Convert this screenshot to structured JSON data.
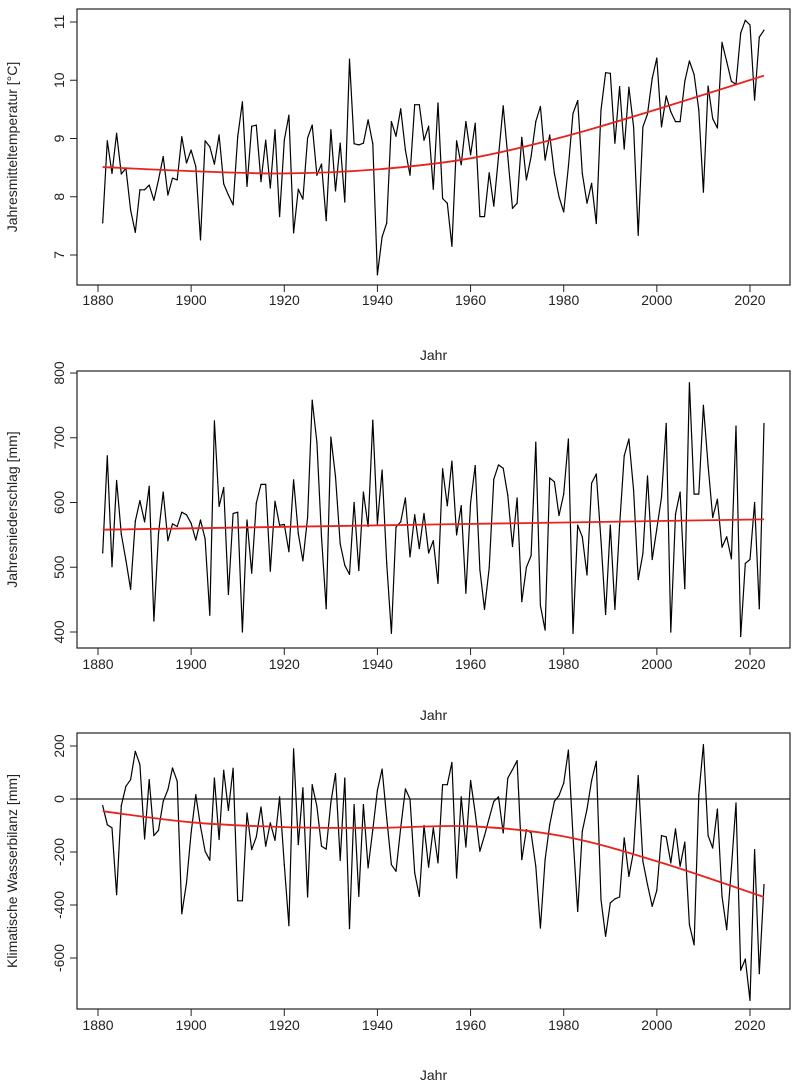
{
  "chart_data": [
    {
      "type": "line",
      "xlabel": "Jahr",
      "ylabel": "Jahresmitteltemperatur [°C]",
      "xlim": [
        1880,
        2023
      ],
      "ylim": [
        7,
        11
      ],
      "xticks": [
        "1880",
        "1900",
        "1920",
        "1940",
        "1960",
        "1980",
        "2000",
        "2020"
      ],
      "yticks": [
        "7",
        "8",
        "9",
        "10",
        "11"
      ],
      "grid": false,
      "x_start": 1881,
      "series": [
        {
          "color": "#000000",
          "values": [
            7.55,
            8.96,
            8.4,
            9.09,
            8.39,
            8.49,
            7.77,
            7.39,
            8.12,
            8.12,
            8.2,
            7.94,
            8.29,
            8.69,
            8.03,
            8.32,
            8.29,
            9.03,
            8.58,
            8.8,
            8.52,
            7.26,
            8.96,
            8.86,
            8.56,
            9.06,
            8.22,
            8.03,
            7.86,
            9.03,
            9.63,
            8.18,
            9.21,
            9.23,
            8.26,
            8.97,
            8.15,
            9.15,
            7.66,
            8.97,
            9.4,
            7.38,
            8.13,
            7.96,
            9.01,
            9.23,
            8.37,
            8.56,
            7.59,
            9.15,
            8.1,
            8.92,
            7.91,
            10.36,
            8.91,
            8.89,
            8.92,
            9.32,
            8.91,
            6.66,
            7.31,
            7.55,
            9.29,
            9.04,
            9.51,
            8.8,
            8.37,
            9.58,
            9.58,
            8.97,
            9.21,
            8.13,
            9.61,
            7.97,
            7.89,
            7.15,
            8.96,
            8.55,
            9.29,
            8.72,
            9.26,
            7.66,
            7.66,
            8.41,
            7.84,
            8.69,
            9.56,
            8.69,
            7.8,
            7.89,
            9.02,
            8.29,
            8.69,
            9.29,
            9.55,
            8.63,
            9.06,
            8.4,
            8.0,
            7.74,
            8.52,
            9.43,
            9.65,
            8.4,
            7.89,
            8.23,
            7.54,
            9.49,
            10.13,
            10.12,
            8.92,
            9.89,
            8.82,
            9.88,
            9.2,
            7.34,
            9.2,
            9.42,
            10.03,
            10.38,
            9.2,
            9.73,
            9.46,
            9.29,
            9.29,
            9.98,
            10.33,
            10.1,
            9.49,
            8.08,
            9.9,
            9.34,
            9.18,
            10.65,
            10.32,
            9.98,
            9.93,
            10.81,
            11.03,
            10.95,
            9.66,
            10.74,
            10.86
          ]
        },
        {
          "color": "#e8231f",
          "trend": [
            [
              1881,
              8.51
            ],
            [
              1900,
              8.44
            ],
            [
              1920,
              8.4
            ],
            [
              1940,
              8.47
            ],
            [
              1960,
              8.66
            ],
            [
              1980,
              9.03
            ],
            [
              2000,
              9.5
            ],
            [
              2023,
              10.08
            ]
          ]
        }
      ]
    },
    {
      "type": "line",
      "xlabel": "Jahr",
      "ylabel": "Jahresniederschlag [mm]",
      "xlim": [
        1880,
        2023
      ],
      "ylim": [
        400,
        800
      ],
      "xticks": [
        "1880",
        "1900",
        "1920",
        "1940",
        "1960",
        "1980",
        "2000",
        "2020"
      ],
      "yticks": [
        "400",
        "500",
        "600",
        "700",
        "800"
      ],
      "grid": false,
      "x_start": 1881,
      "series": [
        {
          "color": "#000000",
          "values": [
            522,
            672,
            501,
            634,
            551,
            511,
            466,
            571,
            603,
            570,
            625,
            417,
            552,
            616,
            541,
            567,
            563,
            585,
            581,
            568,
            542,
            573,
            544,
            426,
            726,
            594,
            623,
            458,
            583,
            585,
            400,
            573,
            491,
            599,
            628,
            628,
            494,
            602,
            565,
            566,
            524,
            635,
            552,
            510,
            577,
            758,
            693,
            547,
            436,
            701,
            640,
            536,
            503,
            489,
            600,
            495,
            616,
            563,
            727,
            567,
            650,
            506,
            398,
            562,
            570,
            607,
            516,
            581,
            529,
            583,
            522,
            541,
            475,
            652,
            595,
            664,
            550,
            595,
            460,
            600,
            657,
            496,
            435,
            499,
            636,
            658,
            653,
            611,
            532,
            607,
            447,
            500,
            518,
            693,
            441,
            403,
            638,
            632,
            580,
            613,
            698,
            398,
            565,
            547,
            488,
            630,
            644,
            541,
            427,
            565,
            435,
            565,
            672,
            698,
            619,
            481,
            521,
            641,
            512,
            559,
            608,
            722,
            400,
            582,
            616,
            467,
            785,
            613,
            613,
            750,
            657,
            577,
            605,
            531,
            547,
            513,
            718,
            393,
            506,
            512,
            600,
            436,
            722
          ]
        },
        {
          "color": "#e8231f",
          "trend": [
            [
              1881,
              558
            ],
            [
              2023,
              574
            ]
          ]
        }
      ]
    },
    {
      "type": "line",
      "xlabel": "Jahr",
      "ylabel": "Klimatische Wasserbilanz [mm]",
      "xlim": [
        1880,
        2023
      ],
      "ylim": [
        -760,
        210
      ],
      "xticks": [
        "1880",
        "1900",
        "1920",
        "1940",
        "1960",
        "1980",
        "2000",
        "2020"
      ],
      "yticks": [
        "-600",
        "-400",
        "-200",
        "0",
        "200"
      ],
      "grid": false,
      "reference_line": 0,
      "x_start": 1881,
      "series": [
        {
          "color": "#000000",
          "values": [
            -25,
            -97,
            -109,
            -361,
            -25,
            48,
            73,
            180,
            130,
            -151,
            73,
            -138,
            -118,
            -9,
            35,
            117,
            67,
            -433,
            -317,
            -128,
            16,
            -103,
            -197,
            -231,
            79,
            -153,
            108,
            -43,
            116,
            -384,
            -384,
            -53,
            -191,
            -143,
            -30,
            -178,
            -90,
            -156,
            8,
            -248,
            -478,
            189,
            -172,
            42,
            -370,
            54,
            -28,
            -178,
            -189,
            -12,
            96,
            -231,
            79,
            -489,
            -21,
            -367,
            -21,
            -260,
            -116,
            33,
            113,
            -72,
            -248,
            -273,
            -109,
            38,
            0,
            -279,
            -367,
            -100,
            -257,
            -109,
            -241,
            54,
            54,
            138,
            -298,
            8,
            -181,
            70,
            -53,
            -197,
            -138,
            -72,
            -9,
            8,
            -128,
            79,
            111,
            145,
            -229,
            -116,
            -128,
            -254,
            -487,
            -229,
            -97,
            -9,
            13,
            60,
            184,
            -141,
            -424,
            -122,
            -38,
            70,
            142,
            -380,
            -518,
            -392,
            -377,
            -370,
            -147,
            -292,
            -197,
            88,
            -235,
            -323,
            -405,
            -345,
            -138,
            -143,
            -241,
            -113,
            -254,
            -163,
            -474,
            -550,
            16,
            205,
            -138,
            -185,
            -38,
            -367,
            -493,
            -260,
            -15,
            -646,
            -604,
            -760,
            -191,
            -659,
            -323
          ]
        },
        {
          "color": "#e8231f",
          "trend": [
            [
              1881,
              -46
            ],
            [
              1900,
              -88
            ],
            [
              1920,
              -106
            ],
            [
              1940,
              -109
            ],
            [
              1960,
              -103
            ],
            [
              1980,
              -141
            ],
            [
              2000,
              -235
            ],
            [
              2023,
              -370
            ]
          ]
        }
      ]
    }
  ]
}
